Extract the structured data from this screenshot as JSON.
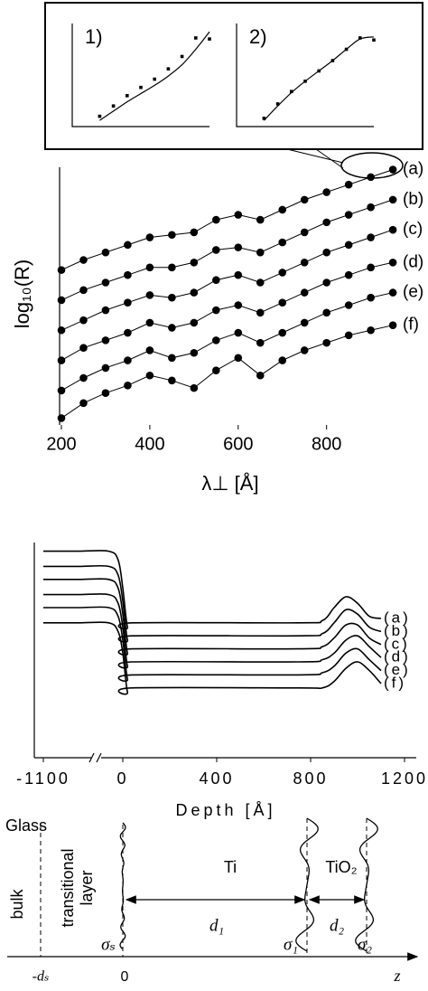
{
  "chart_data": [
    {
      "type": "line",
      "x_label": "λ⊥ [Å]",
      "y_label": "log₁₀(R)",
      "color": "#000000",
      "markers": true,
      "smooth": false,
      "x": [
        200,
        250,
        300,
        350,
        400,
        450,
        500,
        550,
        600,
        650,
        700,
        750,
        800,
        850,
        900,
        950
      ],
      "xlim": [
        200,
        960
      ],
      "xticks": [
        200,
        400,
        600,
        800
      ],
      "ylim": [
        0,
        10.3
      ],
      "series": [
        {
          "name": "(a)",
          "values": [
            6.1,
            6.5,
            6.8,
            7.1,
            7.4,
            7.5,
            7.6,
            8.1,
            8.3,
            8.1,
            8.5,
            8.9,
            9.2,
            9.5,
            9.8,
            10.1
          ]
        },
        {
          "name": "(b)",
          "values": [
            4.9,
            5.3,
            5.6,
            5.9,
            6.2,
            6.2,
            6.4,
            6.9,
            7.0,
            6.8,
            7.2,
            7.6,
            8.0,
            8.3,
            8.6,
            8.9
          ]
        },
        {
          "name": "(c)",
          "values": [
            3.7,
            4.1,
            4.5,
            4.8,
            5.1,
            5.0,
            5.2,
            5.7,
            5.9,
            5.6,
            6.0,
            6.4,
            6.8,
            7.1,
            7.4,
            7.7
          ]
        },
        {
          "name": "(d)",
          "values": [
            2.5,
            3.0,
            3.3,
            3.6,
            4.0,
            3.8,
            4.0,
            4.5,
            4.7,
            4.4,
            4.8,
            5.2,
            5.6,
            5.9,
            6.2,
            6.4
          ]
        },
        {
          "name": "(e)",
          "values": [
            1.3,
            1.8,
            2.2,
            2.5,
            2.9,
            2.6,
            2.8,
            3.3,
            3.6,
            3.2,
            3.6,
            4.0,
            4.4,
            4.7,
            5.0,
            5.2
          ]
        },
        {
          "name": "(f)",
          "values": [
            0.2,
            0.8,
            1.2,
            1.5,
            1.9,
            1.7,
            1.4,
            2.1,
            2.6,
            1.9,
            2.5,
            2.9,
            3.2,
            3.5,
            3.7,
            3.9
          ]
        }
      ],
      "insets": [
        {
          "label": "1)",
          "xlim": [
            0,
            10
          ],
          "ylim": [
            0,
            10
          ],
          "x": [
            2,
            3,
            4,
            5,
            6,
            7,
            8,
            9,
            10
          ],
          "points": [
            1.0,
            2.0,
            3.0,
            3.8,
            4.6,
            5.6,
            6.8,
            8.6,
            8.5
          ],
          "fit": [
            0.6,
            1.5,
            2.4,
            3.2,
            4.0,
            4.9,
            6.0,
            7.5,
            9.2
          ]
        },
        {
          "label": "2)",
          "xlim": [
            0,
            10
          ],
          "ylim": [
            0,
            10
          ],
          "x": [
            2,
            3,
            4,
            5,
            6,
            7,
            8,
            9,
            10
          ],
          "points": [
            0.8,
            2.2,
            3.4,
            4.4,
            5.4,
            6.4,
            7.5,
            8.6,
            8.4
          ],
          "fit": [
            0.6,
            2.0,
            3.3,
            4.4,
            5.4,
            6.4,
            7.5,
            8.5,
            8.7
          ]
        }
      ]
    },
    {
      "type": "line",
      "x_label": "Depth [Å]",
      "color": "#000000",
      "markers": false,
      "smooth": true,
      "x": [
        -1100,
        -950,
        -60,
        -20,
        0,
        20,
        40,
        750,
        850,
        900,
        950,
        1000,
        1050,
        1100
      ],
      "xlim": [
        -1100,
        1250
      ],
      "xbreak": -500,
      "xticks": [
        -1100,
        0,
        400,
        800,
        1200
      ],
      "ylim": [
        0,
        10
      ],
      "series": [
        {
          "name": "(a)",
          "values": [
            9.6,
            9.6,
            9.6,
            9.2,
            7.9,
            6.1,
            6.3,
            6.3,
            6.4,
            7.0,
            7.5,
            7.2,
            6.6,
            6.5
          ]
        },
        {
          "name": "(b)",
          "values": [
            8.9,
            8.9,
            8.9,
            8.5,
            7.3,
            5.5,
            5.7,
            5.7,
            5.8,
            6.3,
            6.9,
            6.7,
            6.1,
            5.9
          ]
        },
        {
          "name": "(c)",
          "values": [
            8.3,
            8.3,
            8.3,
            7.9,
            6.7,
            4.9,
            5.1,
            5.1,
            5.2,
            5.6,
            6.2,
            6.2,
            5.6,
            5.3
          ]
        },
        {
          "name": "(d)",
          "values": [
            7.6,
            7.6,
            7.6,
            7.2,
            6.1,
            4.3,
            4.5,
            4.5,
            4.6,
            4.9,
            5.5,
            5.7,
            5.2,
            4.7
          ]
        },
        {
          "name": "(e)",
          "values": [
            7.0,
            7.0,
            7.0,
            6.6,
            5.5,
            3.7,
            3.9,
            3.9,
            4.0,
            4.3,
            4.9,
            5.1,
            4.6,
            4.1
          ]
        },
        {
          "name": "(f)",
          "values": [
            6.3,
            6.3,
            6.3,
            5.9,
            4.9,
            3.1,
            3.3,
            3.3,
            3.3,
            3.6,
            4.2,
            4.5,
            4.1,
            3.5
          ]
        }
      ]
    }
  ],
  "diagram": {
    "glass": "Glass",
    "bulk": "bulk",
    "transitional": [
      "transitional",
      "layer"
    ],
    "ti": "Ti",
    "tio2": "TiO₂",
    "d1": "d₁",
    "d2": "d₂",
    "sigma_s": "σₛ",
    "sigma_1": "σ₁",
    "sigma_2": "σ₂",
    "minus_ds": "-dₛ",
    "zero": "0",
    "z": "z"
  }
}
